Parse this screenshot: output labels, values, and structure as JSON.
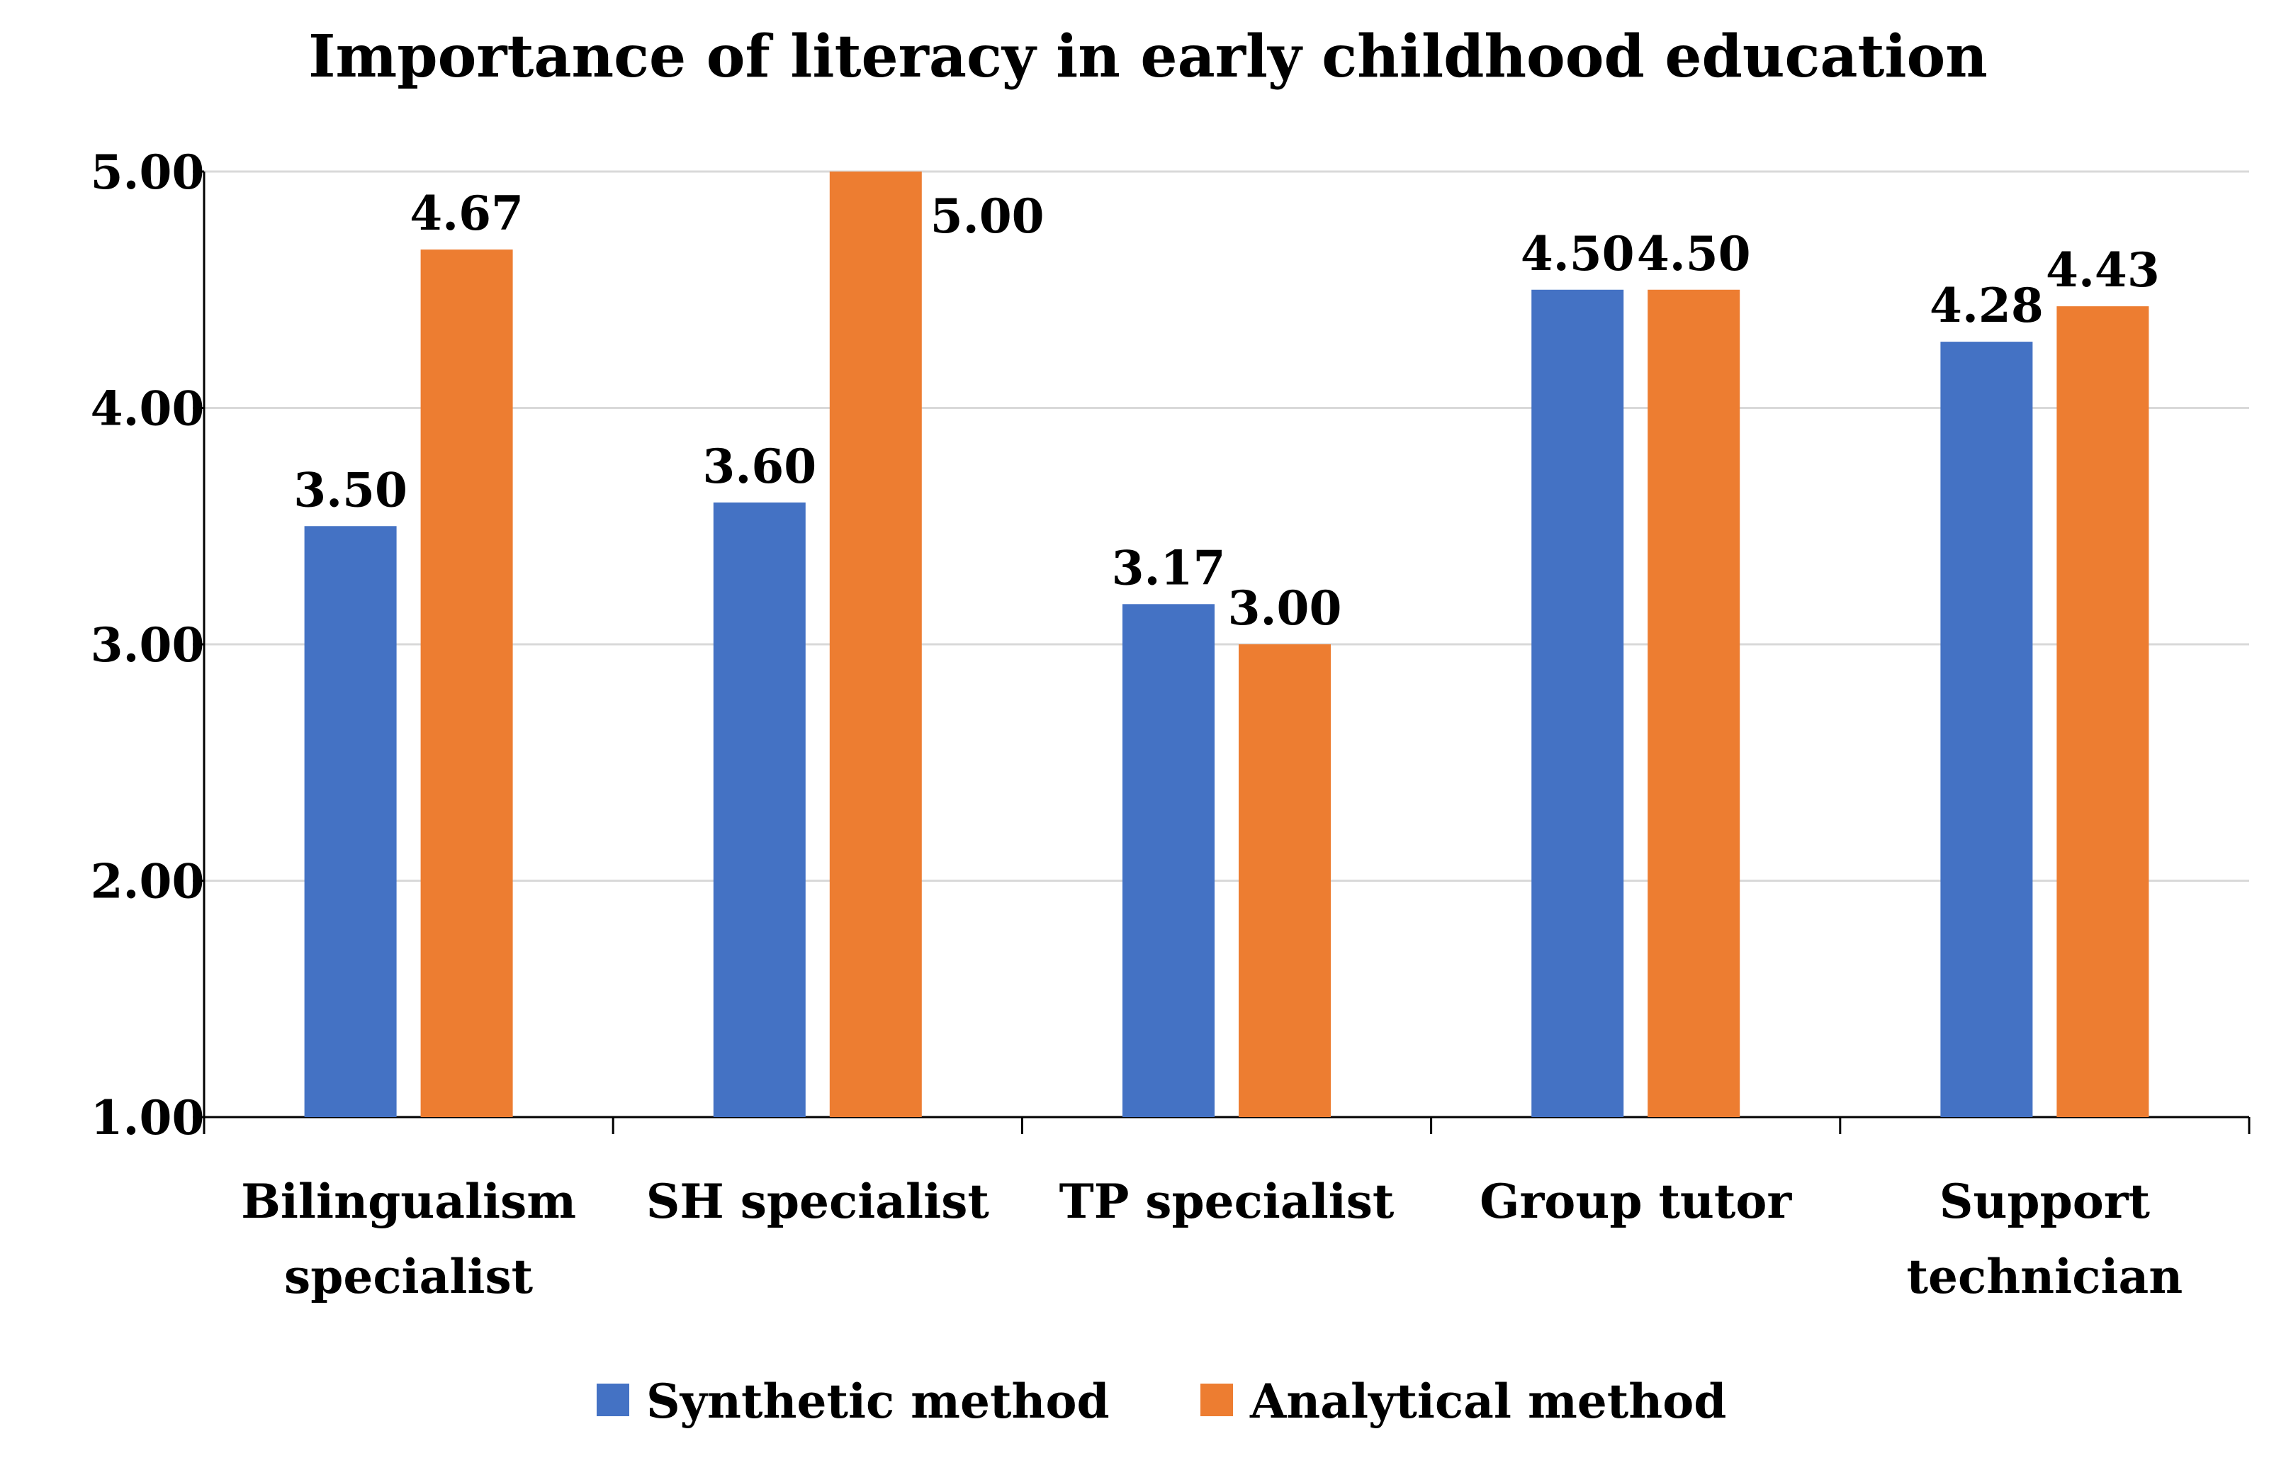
{
  "chart_data": {
    "type": "bar",
    "title": "Importance of literacy in early childhood education",
    "xlabel": "",
    "ylabel": "",
    "ylim": [
      1.0,
      5.0
    ],
    "yticks": [
      "1.00",
      "2.00",
      "3.00",
      "4.00",
      "5.00"
    ],
    "ytick_values": [
      1,
      2,
      3,
      4,
      5
    ],
    "grid": true,
    "legend_position": "bottom-center",
    "categories": [
      [
        "Bilingualism",
        "specialist"
      ],
      [
        "SH specialist"
      ],
      [
        "TP specialist"
      ],
      [
        "Group tutor"
      ],
      [
        "Support",
        "technician"
      ]
    ],
    "series": [
      {
        "name": "Synthetic method",
        "color": "#4472C4",
        "values": [
          3.5,
          3.6,
          3.17,
          4.5,
          4.28
        ],
        "labels": [
          "3.50",
          "3.60",
          "3.17",
          "4.50",
          "4.28"
        ]
      },
      {
        "name": "Analytical method",
        "color": "#ED7D31",
        "values": [
          4.67,
          5.0,
          3.0,
          4.5,
          4.43
        ],
        "labels": [
          "4.67",
          "5.00",
          "3.00",
          "4.50",
          "4.43"
        ]
      }
    ]
  }
}
